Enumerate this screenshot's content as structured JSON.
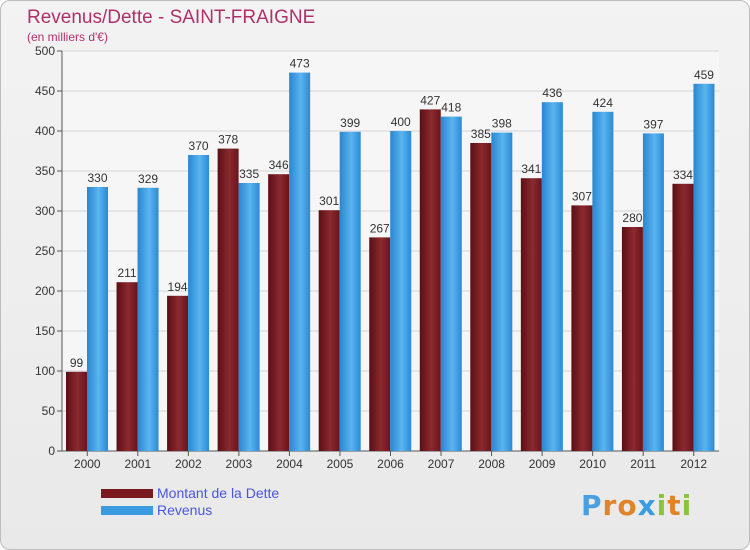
{
  "header": {
    "title": "Revenus/Dette - SAINT-FRAIGNE",
    "subtitle": "(en milliers d'€)"
  },
  "legend": {
    "items": [
      {
        "label": "Montant de la Dette",
        "color": "#7a1a1f"
      },
      {
        "label": "Revenus",
        "color": "#3a9be0"
      }
    ]
  },
  "brand": {
    "letters": [
      "P",
      "r",
      "o",
      "x",
      "i",
      "t",
      "i"
    ],
    "colors": [
      "#4a9fe0",
      "#e0842a",
      "#e0842a",
      "#3a9be0",
      "#8ac43a",
      "#e0842a",
      "#8ac43a"
    ]
  },
  "chart_data": {
    "type": "bar",
    "categories": [
      "2000",
      "2001",
      "2002",
      "2003",
      "2004",
      "2005",
      "2006",
      "2007",
      "2008",
      "2009",
      "2010",
      "2011",
      "2012"
    ],
    "series": [
      {
        "name": "Montant de la Dette",
        "values": [
          99,
          211,
          194,
          378,
          346,
          301,
          267,
          427,
          385,
          341,
          307,
          280,
          334
        ],
        "color": "#7a1a1f"
      },
      {
        "name": "Revenus",
        "values": [
          330,
          329,
          370,
          335,
          473,
          399,
          400,
          418,
          398,
          436,
          424,
          397,
          459
        ],
        "color": "#3a9be0"
      }
    ],
    "yticks": [
      0,
      50,
      100,
      150,
      200,
      250,
      300,
      350,
      400,
      450,
      500
    ],
    "ylim": [
      0,
      500
    ],
    "grid": true
  }
}
